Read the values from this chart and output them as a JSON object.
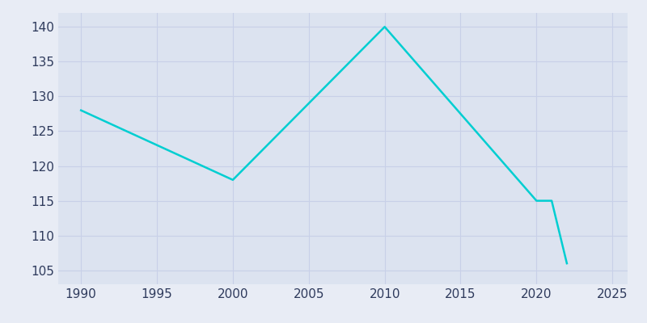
{
  "years": [
    1990,
    2000,
    2010,
    2020,
    2021,
    2022
  ],
  "values": [
    128,
    118,
    140,
    115,
    115,
    106
  ],
  "line_color": "#00CED1",
  "fig_bg_color": "#e8ecf5",
  "plot_bg_color": "#dce3f0",
  "ylim": [
    103,
    142
  ],
  "xlim": [
    1988.5,
    2026
  ],
  "yticks": [
    105,
    110,
    115,
    120,
    125,
    130,
    135,
    140
  ],
  "xticks": [
    1990,
    1995,
    2000,
    2005,
    2010,
    2015,
    2020,
    2025
  ],
  "line_width": 1.8,
  "grid_color": "#c8d0e8",
  "tick_color": "#2e3a5c",
  "tick_fontsize": 11
}
